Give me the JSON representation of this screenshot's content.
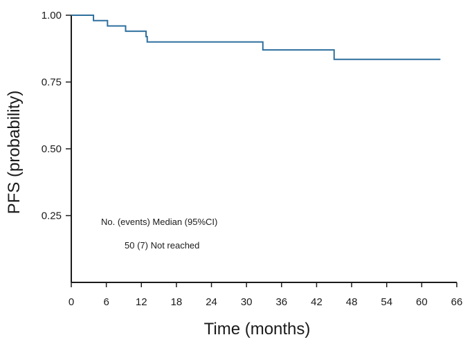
{
  "chart_data": {
    "type": "line",
    "title": "",
    "xlabel": "Time (months)",
    "ylabel": "PFS (probability)",
    "xlim": [
      0,
      66
    ],
    "ylim": [
      0,
      1.0
    ],
    "x_ticks": [
      0,
      6,
      12,
      18,
      24,
      30,
      36,
      42,
      48,
      54,
      60,
      66
    ],
    "x_tick_labels": [
      "0",
      "6",
      "12",
      "18",
      "24",
      "30",
      "36",
      "42",
      "48",
      "54",
      "60",
      "66"
    ],
    "y_ticks": [
      0.25,
      0.5,
      0.75,
      1.0
    ],
    "y_tick_labels": [
      "0.25",
      "0.50",
      "0.75",
      "1.00"
    ],
    "series": [
      {
        "name": "PFS",
        "style": "step",
        "color": "#2e6f9e",
        "x": [
          0,
          3.8,
          6.2,
          9.3,
          12.8,
          13.0,
          32.8,
          45.0,
          63.2
        ],
        "y": [
          1.0,
          0.98,
          0.96,
          0.94,
          0.92,
          0.9,
          0.87,
          0.835,
          0.835
        ]
      }
    ],
    "annotations": [
      {
        "text": "No. (events) Median (95%CI)"
      },
      {
        "text": "50 (7) Not reached"
      }
    ]
  }
}
